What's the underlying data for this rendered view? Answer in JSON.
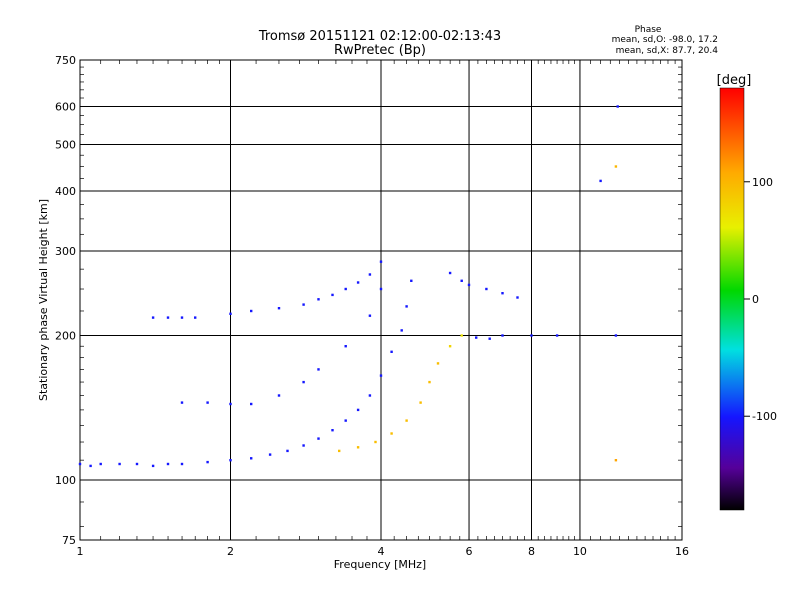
{
  "chart_data": {
    "type": "scatter",
    "title_line1": "Tromsø 20151121 02:12:00-02:13:43",
    "title_line2": "RwPretec (Bp)",
    "xlabel": "Frequency [MHz]",
    "ylabel": "Stationary phase Virtual Height [km]",
    "x_scale": "log",
    "y_scale": "log",
    "xlim": [
      1,
      16
    ],
    "ylim": [
      75,
      750
    ],
    "x_ticks": [
      1,
      2,
      4,
      6,
      8,
      10,
      16
    ],
    "x_tick_labels": [
      "1",
      "2",
      "4",
      "6",
      "8",
      "10",
      "16"
    ],
    "y_ticks": [
      75,
      100,
      200,
      300,
      400,
      500,
      600,
      750
    ],
    "y_tick_labels": [
      "75",
      "100",
      "200",
      "300",
      "400",
      "500",
      "600",
      "750"
    ],
    "grid_x": [
      2,
      4,
      6,
      8,
      10
    ],
    "grid_y": [
      100,
      200,
      300,
      400,
      500,
      600
    ],
    "grid": true,
    "phase_box": {
      "heading": "Phase",
      "line1": "mean, sd,O: -98.0, 17.2",
      "line2": "mean, sd,X: 87.7, 20.4"
    },
    "colorbar": {
      "label": "[deg]",
      "range": [
        -180,
        180
      ],
      "ticks": [
        100,
        0,
        -100
      ],
      "tick_labels": [
        "100",
        "0",
        "-100"
      ]
    },
    "series": [
      {
        "points": [
          [
            1.0,
            108,
            -100
          ],
          [
            1.05,
            107,
            -100
          ],
          [
            1.1,
            108,
            -100
          ],
          [
            1.2,
            108,
            -100
          ],
          [
            1.3,
            108,
            -100
          ],
          [
            1.4,
            107,
            -100
          ],
          [
            1.5,
            108,
            -100
          ],
          [
            1.6,
            108,
            -100
          ],
          [
            1.8,
            109,
            -100
          ],
          [
            2.0,
            110,
            -100
          ],
          [
            2.2,
            111,
            -100
          ],
          [
            2.4,
            113,
            -100
          ],
          [
            2.6,
            115,
            -100
          ],
          [
            2.8,
            118,
            -100
          ],
          [
            3.0,
            122,
            -100
          ],
          [
            3.2,
            127,
            -100
          ],
          [
            3.4,
            133,
            -100
          ],
          [
            3.6,
            140,
            -100
          ],
          [
            3.8,
            150,
            -100
          ],
          [
            4.0,
            165,
            -100
          ],
          [
            4.2,
            185,
            -100
          ],
          [
            4.4,
            205,
            -100
          ],
          [
            4.5,
            230,
            -100
          ],
          [
            4.6,
            260,
            -100
          ]
        ]
      },
      {
        "points": [
          [
            1.6,
            145,
            -100
          ],
          [
            1.8,
            145,
            -100
          ],
          [
            2.0,
            144,
            -100
          ],
          [
            2.2,
            144,
            -100
          ],
          [
            2.5,
            150,
            -100
          ],
          [
            2.8,
            160,
            -100
          ],
          [
            3.0,
            170,
            -100
          ],
          [
            3.4,
            190,
            -100
          ],
          [
            3.8,
            220,
            -100
          ],
          [
            4.0,
            250,
            -100
          ]
        ]
      },
      {
        "points": [
          [
            1.4,
            218,
            -100
          ],
          [
            1.5,
            218,
            -100
          ],
          [
            1.6,
            218,
            -100
          ],
          [
            1.7,
            218,
            -100
          ],
          [
            2.0,
            222,
            -100
          ],
          [
            2.2,
            225,
            -100
          ],
          [
            2.5,
            228,
            -100
          ],
          [
            2.8,
            232,
            -100
          ],
          [
            3.0,
            238,
            -100
          ],
          [
            3.2,
            243,
            -100
          ],
          [
            3.4,
            250,
            -100
          ],
          [
            3.6,
            258,
            -100
          ],
          [
            3.8,
            268,
            -100
          ],
          [
            4.0,
            285,
            -100
          ]
        ]
      },
      {
        "points": [
          [
            3.3,
            115,
            95
          ],
          [
            3.6,
            117,
            95
          ],
          [
            3.9,
            120,
            95
          ],
          [
            4.2,
            125,
            95
          ],
          [
            4.5,
            133,
            95
          ],
          [
            4.8,
            145,
            95
          ],
          [
            5.0,
            160,
            95
          ],
          [
            5.2,
            175,
            95
          ],
          [
            5.5,
            190,
            80
          ],
          [
            5.8,
            200,
            70
          ]
        ]
      },
      {
        "points": [
          [
            5.5,
            270,
            -100
          ],
          [
            5.8,
            260,
            -100
          ],
          [
            6.0,
            255,
            -100
          ],
          [
            6.5,
            250,
            -100
          ],
          [
            7.0,
            245,
            -100
          ],
          [
            7.5,
            240,
            -100
          ],
          [
            6.2,
            198,
            -100
          ],
          [
            6.6,
            197,
            -100
          ],
          [
            7.0,
            200,
            -100
          ],
          [
            8.0,
            200,
            -100
          ],
          [
            9.0,
            200,
            -100
          ]
        ]
      },
      {
        "points": [
          [
            11.8,
            110,
            110
          ],
          [
            11.8,
            450,
            100
          ],
          [
            11.9,
            600,
            -100
          ],
          [
            11.8,
            200,
            -100
          ],
          [
            11.0,
            420,
            -100
          ]
        ]
      }
    ]
  }
}
